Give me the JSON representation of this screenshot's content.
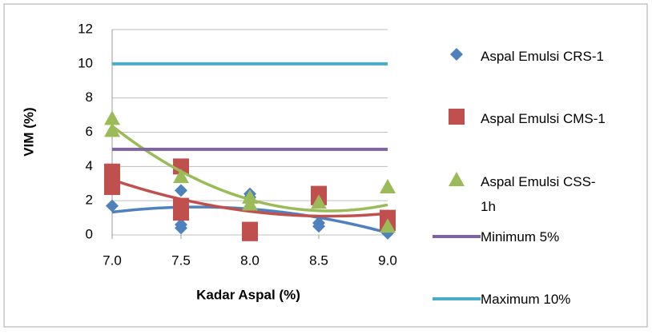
{
  "chart_data": {
    "type": "scatter",
    "xlabel": "Kadar Aspal (%)",
    "ylabel": "VIM (%)",
    "xlim": [
      7,
      9
    ],
    "ylim": [
      0,
      12
    ],
    "xticks": [
      {
        "value": 7,
        "label": "7.0"
      },
      {
        "value": 7.5,
        "label": "7.5"
      },
      {
        "value": 8,
        "label": "8.0"
      },
      {
        "value": 8.5,
        "label": "8.5"
      },
      {
        "value": 9,
        "label": "9.0"
      }
    ],
    "yticks": [
      0,
      2,
      4,
      6,
      8,
      10,
      12
    ],
    "grid": true,
    "legend": "right",
    "trendline": "polynomial",
    "series": [
      {
        "name": "Aspal Emulsi CRS-1",
        "color": "#4f81bd",
        "marker": "diamond",
        "x": [
          7,
          7.5,
          7.5,
          7.5,
          8,
          8,
          8.5,
          8.5,
          9,
          9
        ],
        "values": [
          1.7,
          0.4,
          0.6,
          2.6,
          2.4,
          2.2,
          0.5,
          0.7,
          0.1,
          0.3
        ]
      },
      {
        "name": "Aspal Emulsi CMS-1",
        "color": "#c0504d",
        "marker": "square",
        "x": [
          7,
          7,
          7,
          7.5,
          7.5,
          7.5,
          8,
          8,
          8.5,
          8.5,
          9,
          9
        ],
        "values": [
          2.8,
          3.2,
          3.7,
          4.0,
          1.3,
          1.7,
          0.1,
          0.3,
          2.4,
          2.2,
          0.7,
          1.0
        ]
      },
      {
        "name": "Aspal Emulsi CSS-1h",
        "color": "#9bbb59",
        "marker": "triangle",
        "x": [
          7,
          7,
          7.5,
          8,
          8,
          8.5,
          9,
          9
        ],
        "values": [
          6.8,
          6.1,
          3.4,
          2.2,
          1.8,
          1.9,
          2.8,
          0.5
        ]
      },
      {
        "name": "Minimum 5%",
        "color": "#8064a2",
        "marker": "line",
        "x": [
          7,
          9
        ],
        "values": [
          5,
          5
        ]
      },
      {
        "name": "Maximum 10%",
        "color": "#4bacc6",
        "marker": "line",
        "x": [
          7,
          9
        ],
        "values": [
          10,
          10
        ]
      }
    ]
  }
}
